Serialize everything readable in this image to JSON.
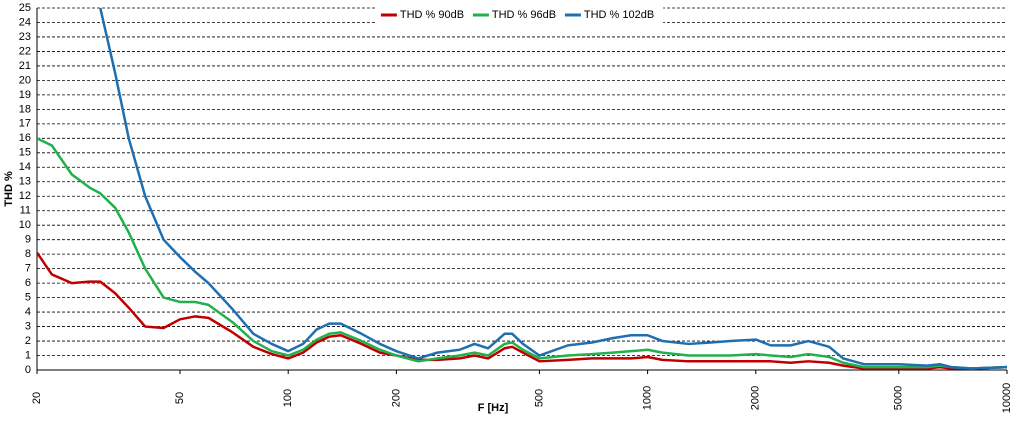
{
  "chart_data": {
    "type": "line",
    "x_label": "F [Hz]",
    "y_label": "THD %",
    "xscale": "log",
    "grid": true,
    "legend": "top",
    "x": [
      20,
      22,
      25,
      28,
      30,
      33,
      36,
      40,
      45,
      50,
      55,
      60,
      70,
      80,
      90,
      100,
      110,
      120,
      130,
      140,
      160,
      180,
      200,
      230,
      260,
      300,
      330,
      360,
      400,
      420,
      450,
      500,
      600,
      700,
      800,
      900,
      1000,
      1100,
      1300,
      1500,
      1700,
      2000,
      2200,
      2500,
      2800,
      3200,
      3500,
      4000,
      5000,
      6000,
      6500,
      7000,
      8000,
      10000
    ],
    "series": [
      {
        "name": "THD % 90dB",
        "color": "#c00000",
        "values": [
          8.1,
          6.6,
          6.0,
          6.1,
          6.1,
          5.3,
          4.3,
          3.0,
          2.9,
          3.5,
          3.7,
          3.6,
          2.6,
          1.6,
          1.1,
          0.8,
          1.2,
          1.9,
          2.3,
          2.4,
          1.8,
          1.2,
          1.0,
          0.7,
          0.7,
          0.8,
          1.0,
          0.8,
          1.5,
          1.6,
          1.2,
          0.6,
          0.7,
          0.8,
          0.8,
          0.8,
          0.9,
          0.7,
          0.6,
          0.6,
          0.6,
          0.6,
          0.6,
          0.5,
          0.6,
          0.5,
          0.3,
          0.1,
          0.1,
          0.1,
          0.2,
          0.1,
          0.1,
          0.2
        ]
      },
      {
        "name": "THD % 96dB",
        "color": "#22b04c",
        "values": [
          16.0,
          15.5,
          13.5,
          12.6,
          12.2,
          11.2,
          9.5,
          7.0,
          5.0,
          4.7,
          4.7,
          4.5,
          3.3,
          2.0,
          1.3,
          1.0,
          1.4,
          2.1,
          2.5,
          2.6,
          2.0,
          1.4,
          1.0,
          0.6,
          0.8,
          1.0,
          1.2,
          1.0,
          1.8,
          1.9,
          1.4,
          0.8,
          1.0,
          1.1,
          1.2,
          1.3,
          1.4,
          1.2,
          1.0,
          1.0,
          1.0,
          1.1,
          1.0,
          0.9,
          1.1,
          0.9,
          0.5,
          0.2,
          0.2,
          0.2,
          0.3,
          0.2,
          0.1,
          0.2
        ]
      },
      {
        "name": "THD % 102dB",
        "color": "#1f6fb0",
        "values": [
          null,
          null,
          null,
          27.5,
          25.0,
          20.5,
          16.0,
          12.0,
          9.0,
          7.8,
          6.8,
          6.0,
          4.2,
          2.5,
          1.8,
          1.3,
          1.8,
          2.8,
          3.2,
          3.2,
          2.5,
          1.8,
          1.3,
          0.8,
          1.2,
          1.4,
          1.8,
          1.5,
          2.5,
          2.5,
          1.8,
          1.0,
          1.7,
          1.9,
          2.2,
          2.4,
          2.4,
          2.0,
          1.8,
          1.9,
          2.0,
          2.1,
          1.7,
          1.7,
          2.0,
          1.6,
          0.8,
          0.4,
          0.4,
          0.3,
          0.4,
          0.2,
          0.1,
          0.2
        ]
      }
    ],
    "xlim": [
      20,
      10000
    ],
    "xticks": [
      20,
      50,
      100,
      200,
      500,
      1000,
      2000,
      5000,
      10000
    ],
    "ylim": [
      0,
      25
    ],
    "yticks": [
      0,
      1,
      2,
      3,
      4,
      5,
      6,
      7,
      8,
      9,
      10,
      11,
      12,
      13,
      14,
      15,
      16,
      17,
      18,
      19,
      20,
      21,
      22,
      23,
      24,
      25
    ]
  }
}
